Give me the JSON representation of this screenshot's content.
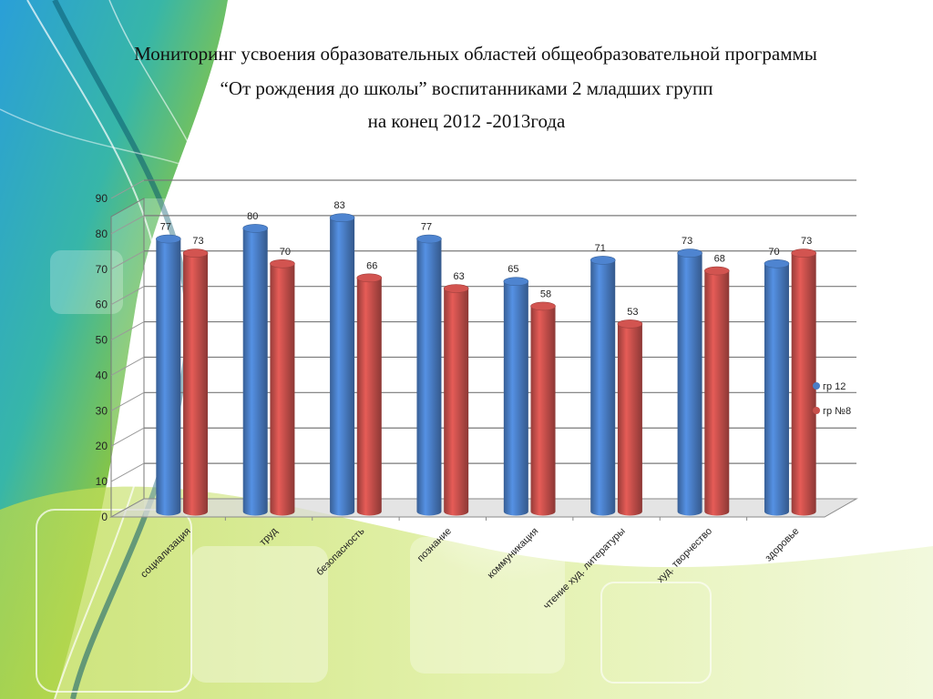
{
  "title": {
    "line1": "Мониторинг усвоения  образовательных областей общеобразовательной программы",
    "line2": "“От рождения до школы” воспитанниками 2 младших групп",
    "line3": "на конец 2012 -2013года"
  },
  "colors": {
    "series1": "#4a7ec6",
    "series2": "#c8504c"
  },
  "chart_data": {
    "type": "bar",
    "categories": [
      "социализация",
      "труд",
      "безопасность",
      "познание",
      "коммуникация",
      "чтение худ. литературы",
      "худ. творчество",
      "здоровье"
    ],
    "series": [
      {
        "name": "гр 12",
        "values": [
          77,
          80,
          83,
          77,
          65,
          71,
          73,
          70
        ]
      },
      {
        "name": "гр №8",
        "values": [
          73,
          70,
          66,
          63,
          58,
          53,
          68,
          73
        ]
      }
    ],
    "yticks": [
      0,
      10,
      20,
      30,
      40,
      50,
      60,
      70,
      80,
      90
    ],
    "ylim": [
      0,
      90
    ],
    "grid": true,
    "legend": "right",
    "data_labels": true
  }
}
